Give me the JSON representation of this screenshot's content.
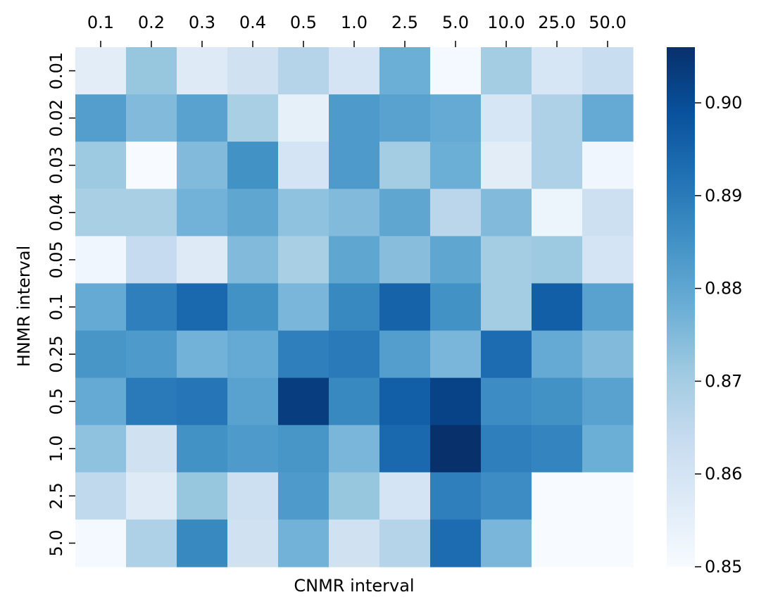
{
  "chart_data": {
    "type": "heatmap",
    "xlabel": "CNMR interval",
    "ylabel": "HNMR interval",
    "x_categories": [
      "0.1",
      "0.2",
      "0.3",
      "0.4",
      "0.5",
      "1.0",
      "2.5",
      "5.0",
      "10.0",
      "25.0",
      "50.0"
    ],
    "y_categories": [
      "0.01",
      "0.02",
      "0.03",
      "0.04",
      "0.05",
      "0.1",
      "0.25",
      "0.5",
      "1.0",
      "2.5",
      "5.0"
    ],
    "values": [
      [
        0.856,
        0.872,
        0.857,
        0.861,
        0.867,
        0.86,
        0.878,
        0.851,
        0.87,
        0.859,
        0.863
      ],
      [
        0.882,
        0.875,
        0.881,
        0.869,
        0.855,
        0.883,
        0.881,
        0.879,
        0.859,
        0.868,
        0.879
      ],
      [
        0.871,
        0.85,
        0.875,
        0.885,
        0.86,
        0.883,
        0.87,
        0.878,
        0.856,
        0.868,
        0.852
      ],
      [
        0.869,
        0.869,
        0.877,
        0.88,
        0.873,
        0.875,
        0.88,
        0.866,
        0.875,
        0.853,
        0.862
      ],
      [
        0.852,
        0.864,
        0.857,
        0.875,
        0.869,
        0.88,
        0.874,
        0.88,
        0.87,
        0.871,
        0.86
      ],
      [
        0.879,
        0.889,
        0.894,
        0.885,
        0.876,
        0.887,
        0.895,
        0.885,
        0.87,
        0.896,
        0.881
      ],
      [
        0.884,
        0.883,
        0.877,
        0.879,
        0.889,
        0.89,
        0.882,
        0.876,
        0.893,
        0.879,
        0.875
      ],
      [
        0.879,
        0.89,
        0.891,
        0.881,
        0.903,
        0.887,
        0.896,
        0.902,
        0.886,
        0.885,
        0.881
      ],
      [
        0.873,
        0.861,
        0.885,
        0.883,
        0.884,
        0.876,
        0.894,
        0.906,
        0.889,
        0.888,
        0.878
      ],
      [
        0.865,
        0.857,
        0.872,
        0.862,
        0.883,
        0.872,
        0.86,
        0.889,
        0.886,
        0.85,
        0.85
      ],
      [
        0.851,
        0.868,
        0.887,
        0.861,
        0.877,
        0.861,
        0.867,
        0.893,
        0.876,
        0.85,
        0.85
      ]
    ],
    "vmin": 0.85,
    "vmax": 0.906,
    "colormap": "Blues",
    "colormap_stops": [
      "#f7fbff",
      "#deebf7",
      "#c6dbef",
      "#9ecae1",
      "#6baed6",
      "#4292c6",
      "#2171b5",
      "#08519c",
      "#08306b"
    ],
    "colorbar": {
      "ticks": [
        0.85,
        0.86,
        0.87,
        0.88,
        0.89,
        0.9
      ],
      "tick_labels": [
        "0.85",
        "0.86",
        "0.87",
        "0.88",
        "0.89",
        "0.90"
      ],
      "position": "right"
    },
    "x_ticks_position": "top",
    "grid": false
  }
}
